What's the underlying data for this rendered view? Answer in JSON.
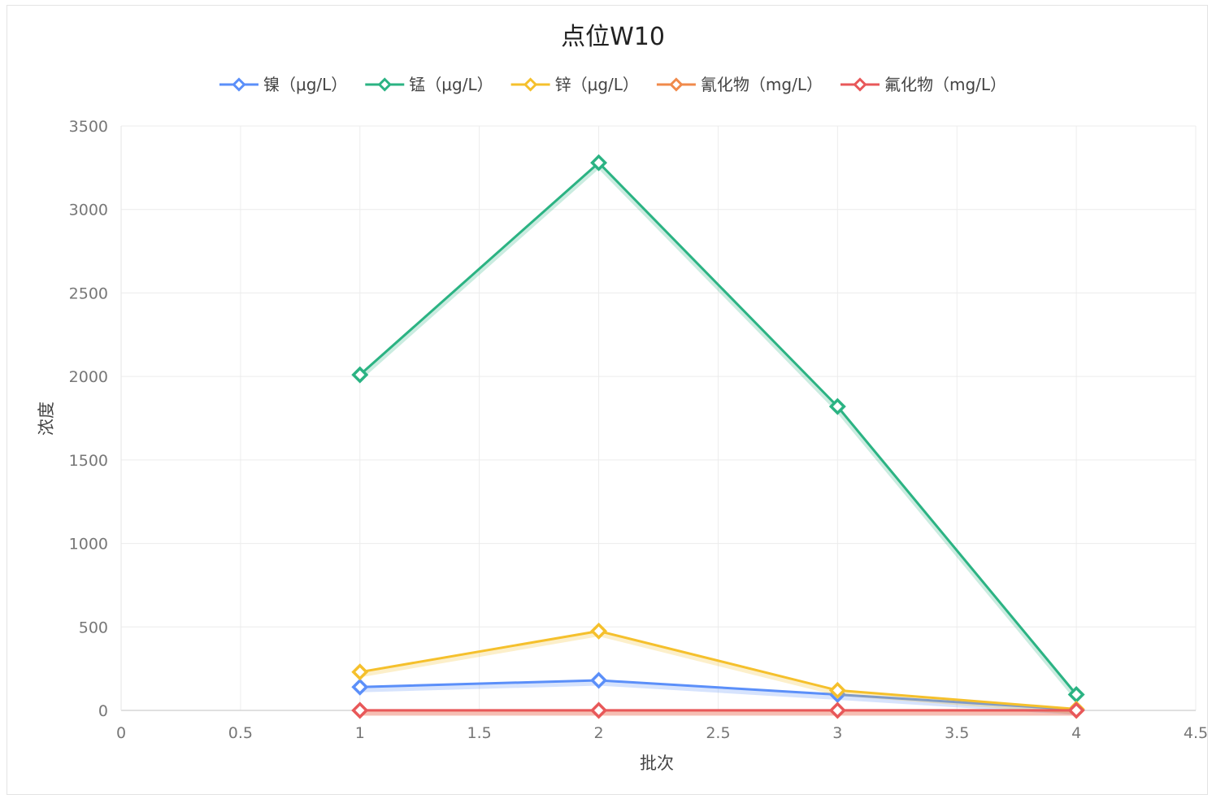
{
  "chart_data": {
    "type": "line",
    "title": "点位W10",
    "xlabel": "批次",
    "ylabel": "浓度",
    "xlim": [
      0,
      4.5
    ],
    "ylim": [
      0,
      3500
    ],
    "x_ticks": [
      "0",
      "0.5",
      "1",
      "1.5",
      "2",
      "2.5",
      "3",
      "3.5",
      "4",
      "4.5"
    ],
    "y_ticks": [
      "0",
      "500",
      "1000",
      "1500",
      "2000",
      "2500",
      "3000",
      "3500"
    ],
    "x": [
      1,
      2,
      3,
      4
    ],
    "grid": true,
    "legend_position": "top-center",
    "series": [
      {
        "name": "镍（μg/L）",
        "color": "#5b8ff9",
        "values": [
          140,
          180,
          95,
          5
        ]
      },
      {
        "name": "锰（μg/L）",
        "color": "#2bb383",
        "values": [
          2010,
          3280,
          1820,
          95
        ]
      },
      {
        "name": "锌（μg/L）",
        "color": "#f5c02c",
        "values": [
          230,
          475,
          120,
          8
        ]
      },
      {
        "name": "氰化物（mg/L）",
        "color": "#f08a4b",
        "values": [
          0.02,
          0.02,
          0.02,
          0.02
        ]
      },
      {
        "name": "氟化物（mg/L）",
        "color": "#e8585a",
        "values": [
          0.3,
          0.3,
          0.3,
          0.3
        ]
      }
    ]
  }
}
